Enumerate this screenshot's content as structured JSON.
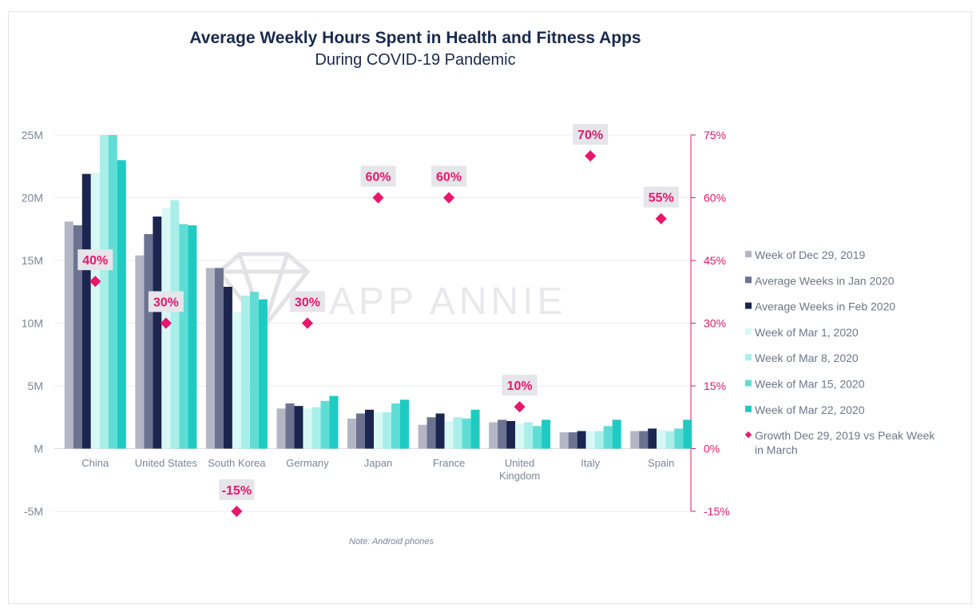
{
  "chart_data": {
    "type": "bar",
    "title": "Average Weekly Hours Spent in Health and Fitness Apps",
    "subtitle": "During COVID-19 Pandemic",
    "categories": [
      [
        "China"
      ],
      [
        "United States"
      ],
      [
        "South Korea"
      ],
      [
        "Germany"
      ],
      [
        "Japan"
      ],
      [
        "France"
      ],
      [
        "United",
        "Kingdom"
      ],
      [
        "Italy"
      ],
      [
        "Spain"
      ]
    ],
    "y_left": {
      "min": -5,
      "max": 25,
      "ticks": [
        25,
        20,
        15,
        10,
        5,
        0,
        -5
      ],
      "tick_labels": [
        "25M",
        "20M",
        "15M",
        "10M",
        "5M",
        "M",
        "-5M"
      ]
    },
    "y_right": {
      "min": -15,
      "max": 75,
      "ticks": [
        75,
        60,
        45,
        30,
        15,
        0,
        -15
      ],
      "tick_labels": [
        "75%",
        "60%",
        "45%",
        "30%",
        "15%",
        "0%",
        "-15%"
      ]
    },
    "series": [
      {
        "name": "Week of Dec 29, 2019",
        "color": "#b4b6c6",
        "values": [
          18.1,
          15.4,
          14.4,
          3.2,
          2.4,
          1.9,
          2.1,
          1.3,
          1.4
        ]
      },
      {
        "name": "Average Weeks in Jan 2020",
        "color": "#6b7390",
        "values": [
          17.8,
          17.1,
          14.4,
          3.6,
          2.8,
          2.5,
          2.3,
          1.3,
          1.4
        ]
      },
      {
        "name": "Average Weeks in Feb 2020",
        "color": "#1b2550",
        "values": [
          21.9,
          18.5,
          12.9,
          3.4,
          3.1,
          2.8,
          2.2,
          1.4,
          1.6
        ]
      },
      {
        "name": "Week of Mar 1, 2020",
        "color": "#d8f8f6",
        "values": [
          22.0,
          19.2,
          10.9,
          3.2,
          2.9,
          2.2,
          2.0,
          1.4,
          1.5
        ]
      },
      {
        "name": "Week of Mar 8, 2020",
        "color": "#a9efe9",
        "values": [
          25.0,
          19.8,
          12.2,
          3.3,
          2.9,
          2.5,
          2.1,
          1.4,
          1.4
        ]
      },
      {
        "name": "Week of Mar 15, 2020",
        "color": "#5fddd4",
        "values": [
          25.0,
          17.9,
          12.5,
          3.8,
          3.6,
          2.4,
          1.8,
          1.8,
          1.6
        ]
      },
      {
        "name": "Week of Mar 22, 2020",
        "color": "#1ecbc2",
        "values": [
          23.0,
          17.8,
          11.9,
          4.2,
          3.9,
          3.1,
          2.3,
          2.3,
          2.3
        ]
      }
    ],
    "growth": {
      "name": "Growth Dec 29, 2019 vs Peak Week in March",
      "color": "#e8176b",
      "values": [
        40,
        30,
        -15,
        30,
        60,
        60,
        10,
        70,
        55
      ],
      "labels": [
        "40%",
        "30%",
        "-15%",
        "30%",
        "60%",
        "60%",
        "10%",
        "70%",
        "55%"
      ]
    },
    "legend_lines": [
      [
        "Week of Dec 29, 2019"
      ],
      [
        "Average Weeks in Jan 2020"
      ],
      [
        "Average Weeks in Feb 2020"
      ],
      [
        "Week of Mar 1, 2020"
      ],
      [
        "Week of Mar 8, 2020"
      ],
      [
        "Week of Mar 15, 2020"
      ],
      [
        "Week of Mar 22, 2020"
      ],
      [
        "Growth Dec 29, 2019 vs Peak Week",
        "in March"
      ]
    ],
    "legend_placement": "right",
    "grid": true,
    "note": "Note: Android phones",
    "watermark": "APP ANNIE"
  }
}
